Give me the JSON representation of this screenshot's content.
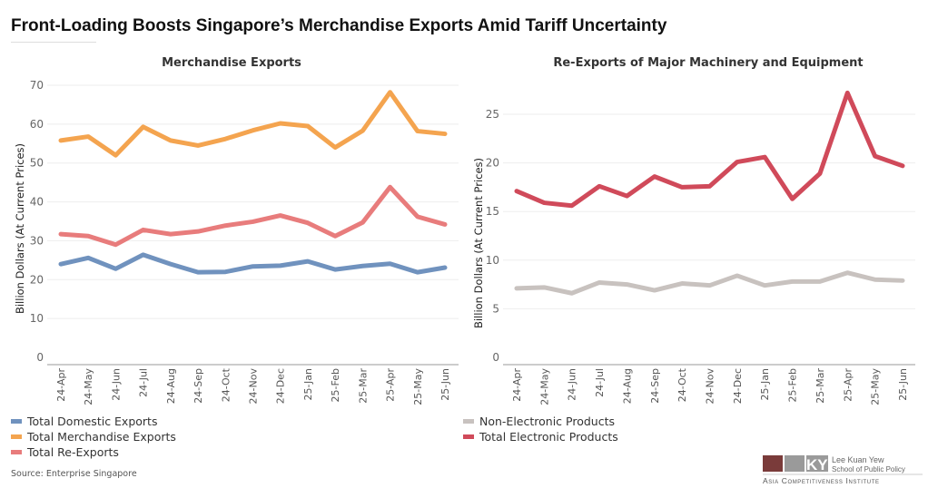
{
  "title": "Front-Loading Boosts Singapore’s Merchandise Exports Amid Tariff Uncertainty",
  "source": "Source: Enterprise Singapore",
  "logo": {
    "line1": "Lee Kuan Yew",
    "line2": "School of Public Policy",
    "line3": "Asia Competitiveness Institute"
  },
  "chart_data": [
    {
      "type": "line",
      "title": "Merchandise Exports",
      "ylabel": "Billion Dollars (At Current Prices)",
      "ylim": [
        0,
        70
      ],
      "yticks": [
        0,
        10,
        20,
        30,
        40,
        50,
        60,
        70
      ],
      "grid": true,
      "legend": "bottom-left",
      "categories": [
        "24-Apr",
        "24-May",
        "24-Jun",
        "24-Jul",
        "24-Aug",
        "24-Sep",
        "24-Oct",
        "24-Nov",
        "24-Dec",
        "25-Jan",
        "25-Feb",
        "25-Mar",
        "25-Apr",
        "25-May",
        "25-Jun"
      ],
      "series": [
        {
          "name": "Total Domestic Exports",
          "color": "#7092be",
          "values": [
            24.0,
            25.6,
            22.8,
            26.4,
            24.0,
            21.9,
            22.0,
            23.4,
            23.6,
            24.7,
            22.6,
            23.5,
            24.1,
            21.9,
            23.1
          ]
        },
        {
          "name": "Total Merchandise Exports",
          "color": "#f4a44f",
          "values": [
            55.8,
            56.8,
            52.0,
            59.3,
            55.8,
            54.5,
            56.2,
            58.4,
            60.2,
            59.5,
            54.0,
            58.3,
            68.2,
            58.2,
            57.5
          ]
        },
        {
          "name": "Total Re-Exports",
          "color": "#e87c7c",
          "values": [
            31.7,
            31.2,
            29.0,
            32.8,
            31.7,
            32.4,
            33.9,
            34.9,
            36.5,
            34.6,
            31.2,
            34.7,
            43.8,
            36.2,
            34.2
          ]
        }
      ]
    },
    {
      "type": "line",
      "title": "Re-Exports of Major Machinery and Equipment",
      "ylabel": "Billion Dollars (At Current Prices)",
      "ylim": [
        0,
        27.5
      ],
      "yticks": [
        0,
        5,
        10,
        15,
        20,
        25
      ],
      "grid": true,
      "legend": "bottom-right",
      "categories": [
        "24-Apr",
        "24-May",
        "24-Jun",
        "24-Jul",
        "24-Aug",
        "24-Sep",
        "24-Oct",
        "24-Nov",
        "24-Dec",
        "25-Jan",
        "25-Feb",
        "25-Mar",
        "25-Apr",
        "25-May",
        "25-Jun"
      ],
      "series": [
        {
          "name": "Non-Electronic Products",
          "color": "#c8c2bf",
          "values": [
            7.1,
            7.2,
            6.6,
            7.7,
            7.5,
            6.9,
            7.6,
            7.4,
            8.4,
            7.4,
            7.8,
            7.8,
            8.7,
            8.0,
            7.9
          ]
        },
        {
          "name": "Total Electronic Products",
          "color": "#d04a5a",
          "values": [
            17.1,
            15.9,
            15.6,
            17.6,
            16.6,
            18.6,
            17.5,
            17.6,
            20.1,
            20.6,
            16.3,
            18.9,
            27.2,
            20.7,
            19.7
          ]
        }
      ]
    }
  ]
}
